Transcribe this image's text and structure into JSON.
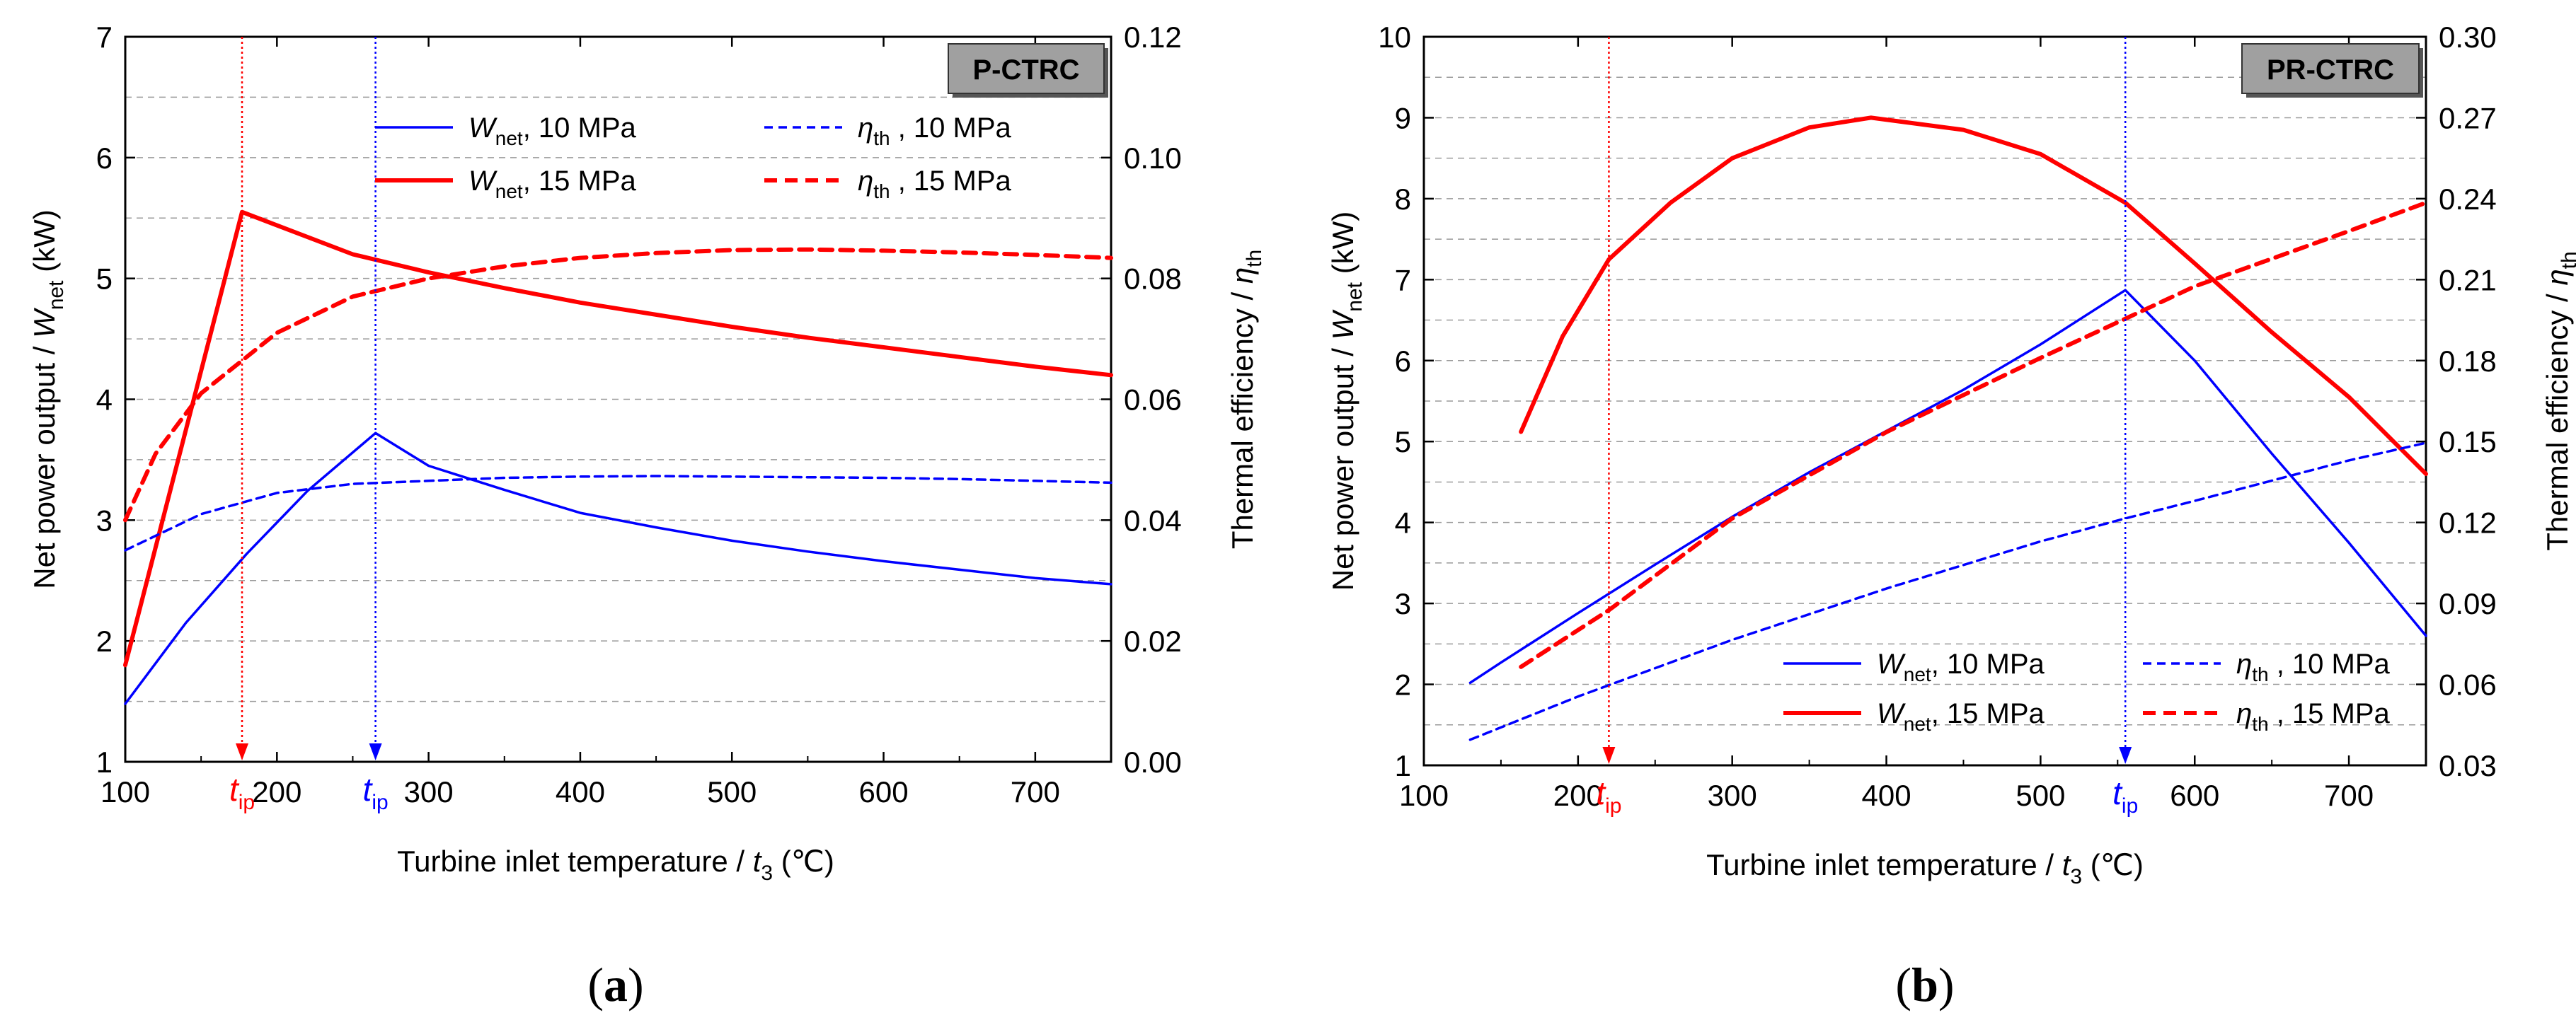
{
  "chart_data": [
    {
      "panel": "a",
      "type": "line",
      "badge": "P-CTRC",
      "panel_label": "(a)",
      "xlabel": {
        "prefix": "Turbine inlet temperature / ",
        "var": "t",
        "sub": "3",
        "suffix": " (℃)"
      },
      "ylabel_left": {
        "prefix": "Net power output / ",
        "var": "W",
        "sub": "net",
        "suffix": " (kW)"
      },
      "ylabel_right": {
        "prefix": "Thermal efficiency / ",
        "var": "η",
        "sub": "th",
        "suffix": ""
      },
      "xlim": [
        100,
        750
      ],
      "ylim_left": [
        1,
        7
      ],
      "ylim_right": [
        0.0,
        0.12
      ],
      "x_ticks": [
        "100",
        "200",
        "300",
        "400",
        "500",
        "600",
        "700"
      ],
      "x_tick_values": [
        100,
        200,
        300,
        400,
        500,
        600,
        700
      ],
      "y_left_ticks": [
        "1",
        "2",
        "3",
        "4",
        "5",
        "6",
        "7"
      ],
      "y_left_tick_values": [
        1,
        2,
        3,
        4,
        5,
        6,
        7
      ],
      "y_right_ticks": [
        "0.00",
        "0.02",
        "0.04",
        "0.06",
        "0.08",
        "0.10",
        "0.12"
      ],
      "y_right_tick_values": [
        0,
        0.02,
        0.04,
        0.06,
        0.08,
        0.1,
        0.12
      ],
      "grid": true,
      "markers": [
        {
          "label_var": "t",
          "label_sub": "ip",
          "x": 177,
          "color": "#ff0000"
        },
        {
          "label_var": "t",
          "label_sub": "ip",
          "x": 265,
          "color": "#0000ff"
        }
      ],
      "series": [
        {
          "name_var": "W",
          "name_sub": "net",
          "name_suffix": ", 10 MPa",
          "axis": "left",
          "color": "#0000ff",
          "dash": "solid",
          "width": "thin",
          "x": [
            100,
            140,
            180,
            220,
            265,
            300,
            350,
            400,
            450,
            500,
            550,
            600,
            650,
            700,
            750
          ],
          "y": [
            1.48,
            2.15,
            2.72,
            3.24,
            3.72,
            3.45,
            3.25,
            3.06,
            2.94,
            2.83,
            2.74,
            2.66,
            2.59,
            2.52,
            2.47
          ]
        },
        {
          "name_var": "W",
          "name_sub": "net",
          "name_suffix": ", 15 MPa",
          "axis": "left",
          "color": "#ff0000",
          "dash": "solid",
          "width": "thick",
          "x": [
            100,
            177,
            250,
            300,
            350,
            400,
            450,
            500,
            550,
            600,
            650,
            700,
            750
          ],
          "y": [
            1.8,
            5.55,
            5.2,
            5.05,
            4.92,
            4.8,
            4.7,
            4.6,
            4.51,
            4.43,
            4.35,
            4.27,
            4.2
          ]
        },
        {
          "name_var": "η",
          "name_sub": "th",
          "name_suffix": " , 10 MPa",
          "axis": "right",
          "color": "#0000ff",
          "dash": "dashed",
          "width": "thin",
          "x": [
            100,
            150,
            200,
            250,
            300,
            350,
            400,
            450,
            500,
            550,
            600,
            650,
            700,
            750
          ],
          "y": [
            0.035,
            0.041,
            0.0445,
            0.046,
            0.0465,
            0.047,
            0.0472,
            0.0473,
            0.0472,
            0.0471,
            0.047,
            0.0468,
            0.0465,
            0.0462
          ]
        },
        {
          "name_var": "η",
          "name_sub": "th",
          "name_suffix": " , 15 MPa",
          "axis": "right",
          "color": "#ff0000",
          "dash": "dashed",
          "width": "thick",
          "x": [
            100,
            120,
            150,
            200,
            250,
            300,
            350,
            400,
            450,
            500,
            550,
            600,
            650,
            700,
            750
          ],
          "y": [
            0.04,
            0.051,
            0.061,
            0.071,
            0.077,
            0.08,
            0.082,
            0.0834,
            0.0842,
            0.0847,
            0.0848,
            0.0846,
            0.0843,
            0.0839,
            0.0834
          ]
        }
      ]
    },
    {
      "panel": "b",
      "type": "line",
      "badge": "PR-CTRC",
      "panel_label": "(b)",
      "xlabel": {
        "prefix": "Turbine inlet temperature / ",
        "var": "t",
        "sub": "3",
        "suffix": " (℃)"
      },
      "ylabel_left": {
        "prefix": "Net power output / ",
        "var": "W",
        "sub": "net",
        "suffix": " (kW)"
      },
      "ylabel_right": {
        "prefix": "Thermal efficiency / ",
        "var": "η",
        "sub": "th",
        "suffix": ""
      },
      "xlim": [
        100,
        750
      ],
      "ylim_left": [
        1,
        10
      ],
      "ylim_right": [
        0.03,
        0.3
      ],
      "x_ticks": [
        "100",
        "200",
        "300",
        "400",
        "500",
        "600",
        "700"
      ],
      "x_tick_values": [
        100,
        200,
        300,
        400,
        500,
        600,
        700
      ],
      "y_left_ticks": [
        "1",
        "2",
        "3",
        "4",
        "5",
        "6",
        "7",
        "8",
        "9",
        "10"
      ],
      "y_left_tick_values": [
        1,
        2,
        3,
        4,
        5,
        6,
        7,
        8,
        9,
        10
      ],
      "y_right_ticks": [
        "0.03",
        "0.06",
        "0.09",
        "0.12",
        "0.15",
        "0.18",
        "0.21",
        "0.24",
        "0.27",
        "0.30"
      ],
      "y_right_tick_values": [
        0.03,
        0.06,
        0.09,
        0.12,
        0.15,
        0.18,
        0.21,
        0.24,
        0.27,
        0.3
      ],
      "grid": true,
      "markers": [
        {
          "label_var": "t",
          "label_sub": "ip",
          "x": 220,
          "color": "#ff0000"
        },
        {
          "label_var": "t",
          "label_sub": "ip",
          "x": 555,
          "color": "#0000ff"
        }
      ],
      "series": [
        {
          "name_var": "W",
          "name_sub": "net",
          "name_suffix": ", 10 MPa",
          "axis": "left",
          "color": "#0000ff",
          "dash": "solid",
          "width": "thin",
          "x": [
            130,
            150,
            200,
            250,
            300,
            350,
            400,
            450,
            500,
            555,
            600,
            650,
            700,
            750
          ],
          "y": [
            2.02,
            2.27,
            2.88,
            3.48,
            4.07,
            4.62,
            5.13,
            5.64,
            6.2,
            6.87,
            6.0,
            4.85,
            3.75,
            2.6
          ]
        },
        {
          "name_var": "W",
          "name_sub": "net",
          "name_suffix": ", 15 MPa",
          "axis": "left",
          "color": "#ff0000",
          "dash": "solid",
          "width": "thick",
          "x": [
            163,
            190,
            220,
            260,
            300,
            350,
            390,
            450,
            500,
            555,
            600,
            650,
            700,
            750
          ],
          "y": [
            5.12,
            6.3,
            7.25,
            7.95,
            8.5,
            8.88,
            9.0,
            8.85,
            8.55,
            7.95,
            7.2,
            6.35,
            5.55,
            4.6
          ]
        },
        {
          "name_var": "η",
          "name_sub": "th",
          "name_suffix": " , 10 MPa",
          "axis": "right",
          "color": "#0000ff",
          "dash": "dashed",
          "width": "thin",
          "x": [
            130,
            200,
            300,
            400,
            500,
            555,
            600,
            700,
            750
          ],
          "y": [
            0.0395,
            0.0555,
            0.0765,
            0.0955,
            0.113,
            0.1215,
            0.128,
            0.143,
            0.1495
          ]
        },
        {
          "name_var": "η",
          "name_sub": "th",
          "name_suffix": " , 15 MPa",
          "axis": "right",
          "color": "#ff0000",
          "dash": "dashed",
          "width": "thick",
          "x": [
            163,
            220,
            300,
            400,
            500,
            555,
            600,
            700,
            750
          ],
          "y": [
            0.0665,
            0.0875,
            0.1215,
            0.1535,
            0.181,
            0.1955,
            0.2075,
            0.228,
            0.2385
          ]
        }
      ]
    }
  ]
}
